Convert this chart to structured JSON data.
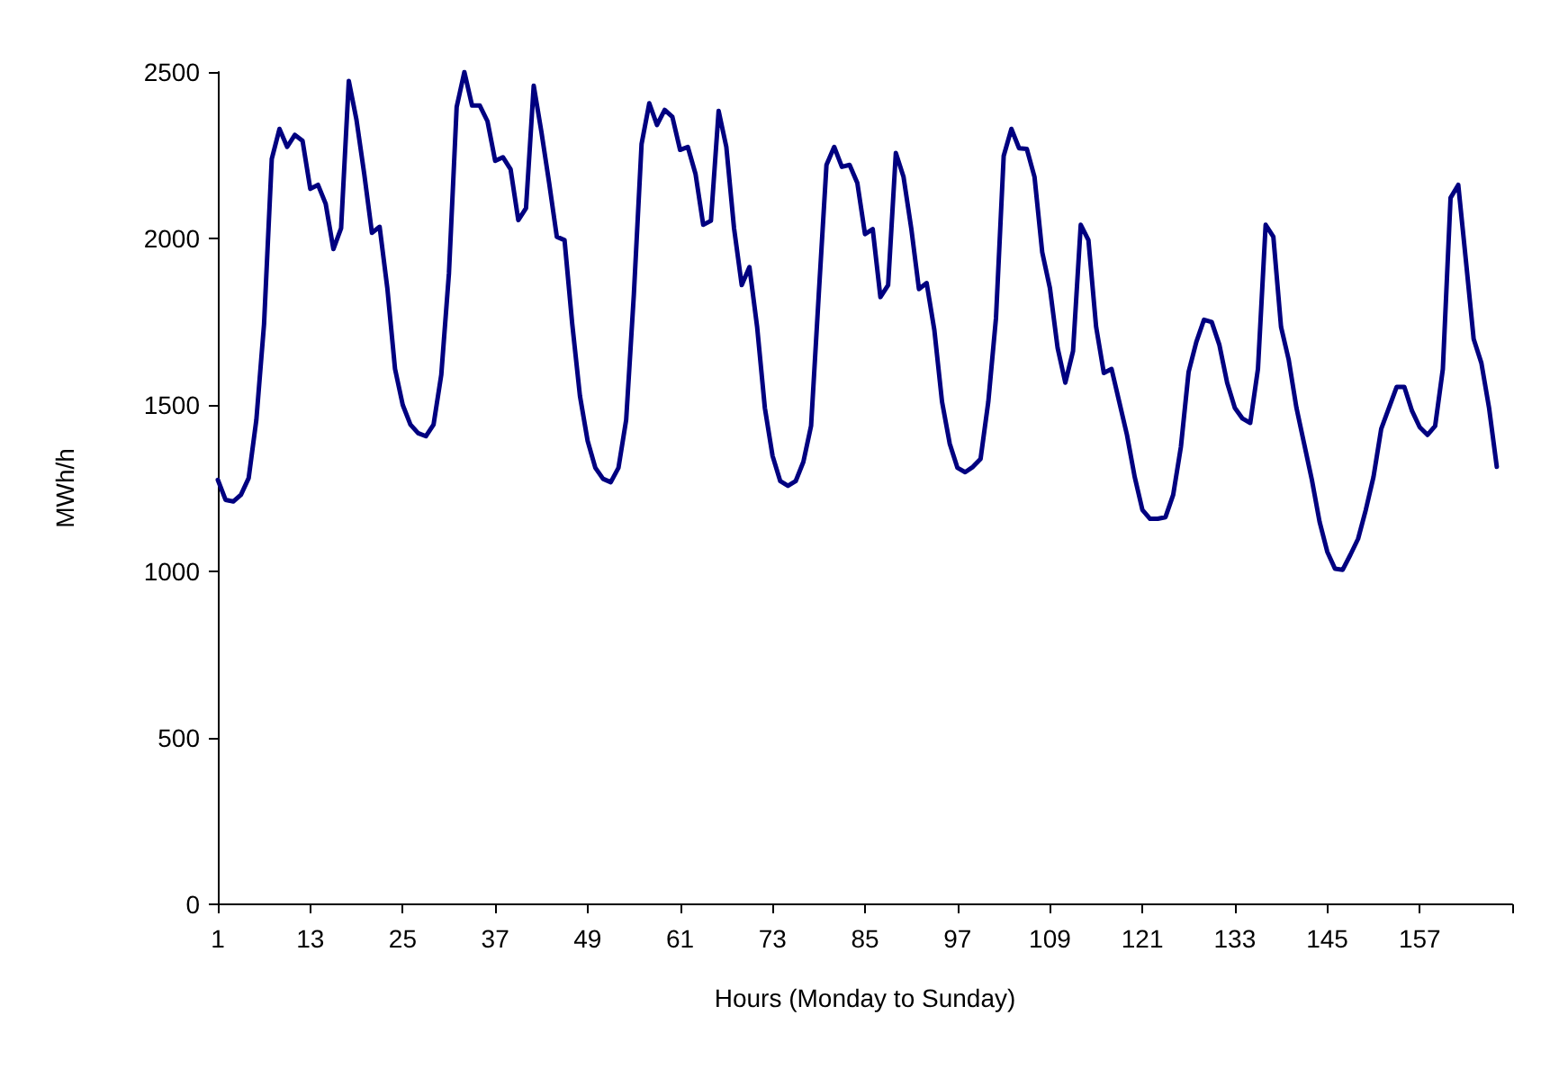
{
  "chart_data": {
    "type": "line",
    "xlabel": "Hours (Monday to Sunday)",
    "ylabel": "MWh/h",
    "x": [
      1,
      2,
      3,
      4,
      5,
      6,
      7,
      8,
      9,
      10,
      11,
      12,
      13,
      14,
      15,
      16,
      17,
      18,
      19,
      20,
      21,
      22,
      23,
      24,
      25,
      26,
      27,
      28,
      29,
      30,
      31,
      32,
      33,
      34,
      35,
      36,
      37,
      38,
      39,
      40,
      41,
      42,
      43,
      44,
      45,
      46,
      47,
      48,
      49,
      50,
      51,
      52,
      53,
      54,
      55,
      56,
      57,
      58,
      59,
      60,
      61,
      62,
      63,
      64,
      65,
      66,
      67,
      68,
      69,
      70,
      71,
      72,
      73,
      74,
      75,
      76,
      77,
      78,
      79,
      80,
      81,
      82,
      83,
      84,
      85,
      86,
      87,
      88,
      89,
      90,
      91,
      92,
      93,
      94,
      95,
      96,
      97,
      98,
      99,
      100,
      101,
      102,
      103,
      104,
      105,
      106,
      107,
      108,
      109,
      110,
      111,
      112,
      113,
      114,
      115,
      116,
      117,
      118,
      119,
      120,
      121,
      122,
      123,
      124,
      125,
      126,
      127,
      128,
      129,
      130,
      131,
      132,
      133,
      134,
      135,
      136,
      137,
      138,
      139,
      140,
      141,
      142,
      143,
      144,
      145,
      146,
      147,
      148,
      149,
      150,
      151,
      152,
      153,
      154,
      155,
      156,
      157,
      158,
      159,
      160,
      161,
      162,
      163,
      164,
      165,
      166,
      167
    ],
    "series": [
      {
        "color": "#000080",
        "values": [
          1275,
          1215,
          1210,
          1230,
          1280,
          1455,
          1743,
          2239,
          2329,
          2275,
          2311,
          2293,
          2149,
          2161,
          2104,
          1968,
          2031,
          2473,
          2356,
          2194,
          2017,
          2035,
          1851,
          1608,
          1500,
          1441,
          1415,
          1406,
          1441,
          1590,
          1896,
          2395,
          2500,
          2399,
          2399,
          2352,
          2233,
          2244,
          2208,
          2055,
          2091,
          2459,
          2320,
          2167,
          2005,
          1995,
          1743,
          1527,
          1392,
          1311,
          1278,
          1268,
          1311,
          1455,
          1833,
          2284,
          2406,
          2341,
          2386,
          2365,
          2266,
          2275,
          2194,
          2041,
          2053,
          2383,
          2275,
          2031,
          1860,
          1914,
          1734,
          1491,
          1347,
          1271,
          1257,
          1271,
          1329,
          1437,
          1833,
          2221,
          2275,
          2215,
          2221,
          2167,
          2013,
          2028,
          1824,
          1860,
          2257,
          2185,
          2031,
          1848,
          1866,
          1725,
          1509,
          1383,
          1311,
          1298,
          1314,
          1338,
          1509,
          1761,
          2248,
          2329,
          2271,
          2269,
          2185,
          1959,
          1851,
          1671,
          1567,
          1662,
          2041,
          1995,
          1734,
          1596,
          1608,
          1509,
          1410,
          1284,
          1185,
          1158,
          1158,
          1163,
          1230,
          1374,
          1599,
          1689,
          1756,
          1749,
          1680,
          1567,
          1491,
          1459,
          1446,
          1608,
          2041,
          2005,
          1734,
          1635,
          1491,
          1383,
          1275,
          1149,
          1059,
          1008,
          1005,
          1050,
          1098,
          1185,
          1284,
          1428,
          1491,
          1554,
          1554,
          1482,
          1433,
          1410,
          1437,
          1608,
          2122,
          2161,
          1932,
          1698,
          1626,
          1491,
          1314
        ]
      }
    ],
    "xlim": [
      1,
      169
    ],
    "xticks": [
      1,
      13,
      25,
      37,
      49,
      61,
      73,
      85,
      97,
      109,
      121,
      133,
      145,
      157,
      {
        "value": 169,
        "label": null
      }
    ],
    "ylim": [
      0,
      2500
    ],
    "yticks": [
      0,
      500,
      1000,
      1500,
      2000,
      2500
    ],
    "grid": false,
    "marker": "none",
    "line_style": "solid"
  }
}
